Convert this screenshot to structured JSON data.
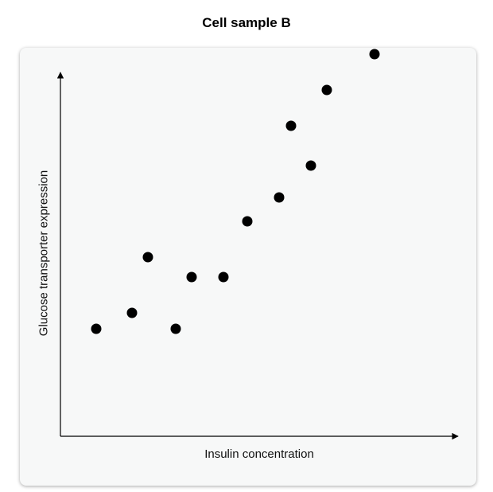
{
  "chart_data": {
    "type": "scatter",
    "title": "Cell sample B",
    "xlabel": "Insulin concentration",
    "ylabel": "Glucose transporter expression",
    "xlim": [
      0,
      10
    ],
    "ylim": [
      0,
      10
    ],
    "ticks": false,
    "grid": false,
    "points": [
      {
        "x": 0.9,
        "y": 2.7
      },
      {
        "x": 1.8,
        "y": 3.1
      },
      {
        "x": 2.2,
        "y": 4.5
      },
      {
        "x": 2.9,
        "y": 2.7
      },
      {
        "x": 3.3,
        "y": 4.0
      },
      {
        "x": 4.1,
        "y": 4.0
      },
      {
        "x": 4.7,
        "y": 5.4
      },
      {
        "x": 5.5,
        "y": 6.0
      },
      {
        "x": 5.8,
        "y": 7.8
      },
      {
        "x": 6.3,
        "y": 6.8
      },
      {
        "x": 6.7,
        "y": 8.7
      },
      {
        "x": 7.9,
        "y": 9.6
      }
    ],
    "marker_color": "#000000"
  }
}
